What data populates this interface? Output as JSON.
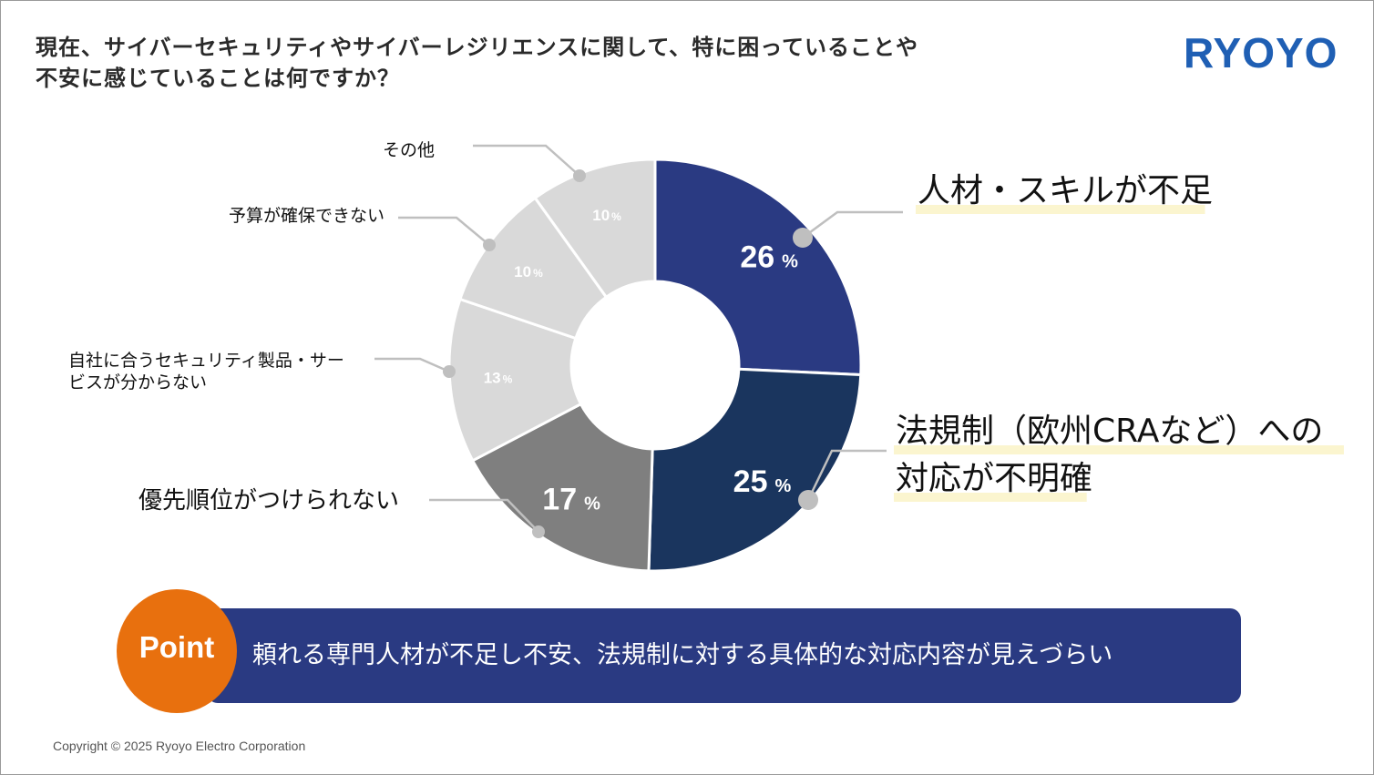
{
  "title": {
    "line1": "現在、サイバーセキュリティやサイバーレジリエンスに関して、特に困っていることや",
    "line2": "不安に感じていることは何ですか？"
  },
  "brand": {
    "logo": "RYOYO",
    "color": "#1f5fb4"
  },
  "chart_data": {
    "type": "pie",
    "donut": true,
    "unit": "%",
    "slices": [
      {
        "label": "人材・スキルが不足",
        "value": 26,
        "color": "#2a3a82"
      },
      {
        "label": "法規制（欧州CRAなど）への対応が不明確",
        "value": 25,
        "color": "#1a355e"
      },
      {
        "label": "優先順位がつけられない",
        "value": 17,
        "color": "#7f7f7f"
      },
      {
        "label": "自社に合うセキュリティ製品・サービスが分からない",
        "value": 13,
        "color": "#d9d9d9"
      },
      {
        "label": "予算が確保できない",
        "value": 10,
        "color": "#d9d9d9"
      },
      {
        "label": "その他",
        "value": 10,
        "color": "#d9d9d9"
      }
    ],
    "label_lines": [
      [
        "人材・スキルが不足"
      ],
      [
        "法規制（欧州CRAなど）への",
        "対応が不明確"
      ],
      [
        "優先順位がつけられない"
      ],
      [
        "自社に合うセキュリティ製品・サー",
        "ビスが分からない"
      ],
      [
        "予算が確保できない"
      ],
      [
        "その他"
      ]
    ]
  },
  "point": {
    "badge": "Point",
    "text": "頼れる専門人材が不足し不安、法規制に対する具体的な対応内容が見えづらい",
    "badge_color": "#e8700e",
    "bar_color": "#2a3a82"
  },
  "footer": {
    "copyright": "Copyright © 2025 Ryoyo Electro Corporation"
  }
}
